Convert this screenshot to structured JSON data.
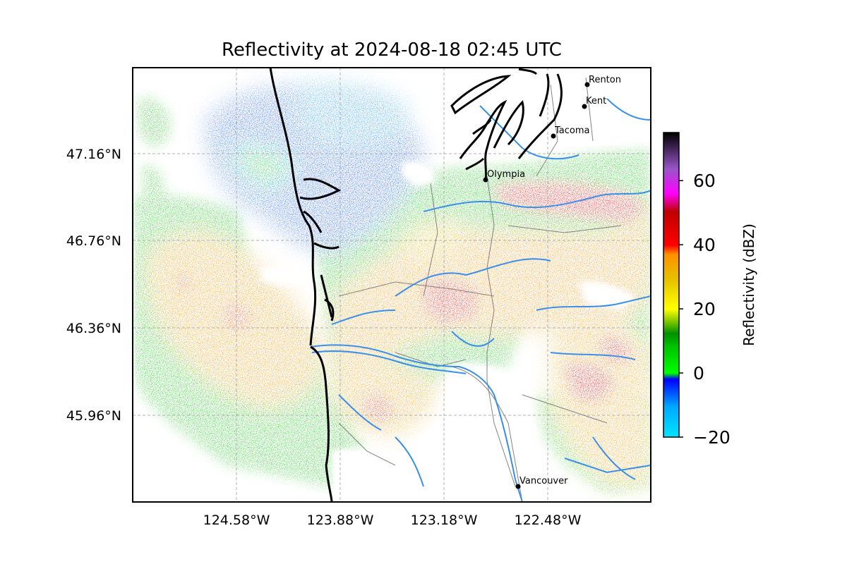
{
  "title": "Reflectivity at 2024-08-18 02:45 UTC",
  "map": {
    "lat_ticks": [
      "47.16°N",
      "46.76°N",
      "46.36°N",
      "45.96°N"
    ],
    "lon_ticks": [
      "124.58°W",
      "123.88°W",
      "123.18°W",
      "122.48°W"
    ],
    "gridlines": "dashed"
  },
  "cities": [
    {
      "name": "Renton"
    },
    {
      "name": "Kent"
    },
    {
      "name": "Tacoma"
    },
    {
      "name": "Olympia"
    },
    {
      "name": "Vancouver"
    }
  ],
  "colorbar": {
    "label": "Reflectivity (dBZ)",
    "min": -20,
    "max": 75,
    "ticks": [
      {
        "label": "60",
        "value": 60
      },
      {
        "label": "40",
        "value": 40
      },
      {
        "label": "20",
        "value": 20
      },
      {
        "label": "0",
        "value": 0
      },
      {
        "label": "−20",
        "value": -20
      }
    ]
  },
  "colors": {
    "water_lines": "#3a8fe8",
    "roads": "#6e6e6e",
    "coastline": "#000000"
  }
}
